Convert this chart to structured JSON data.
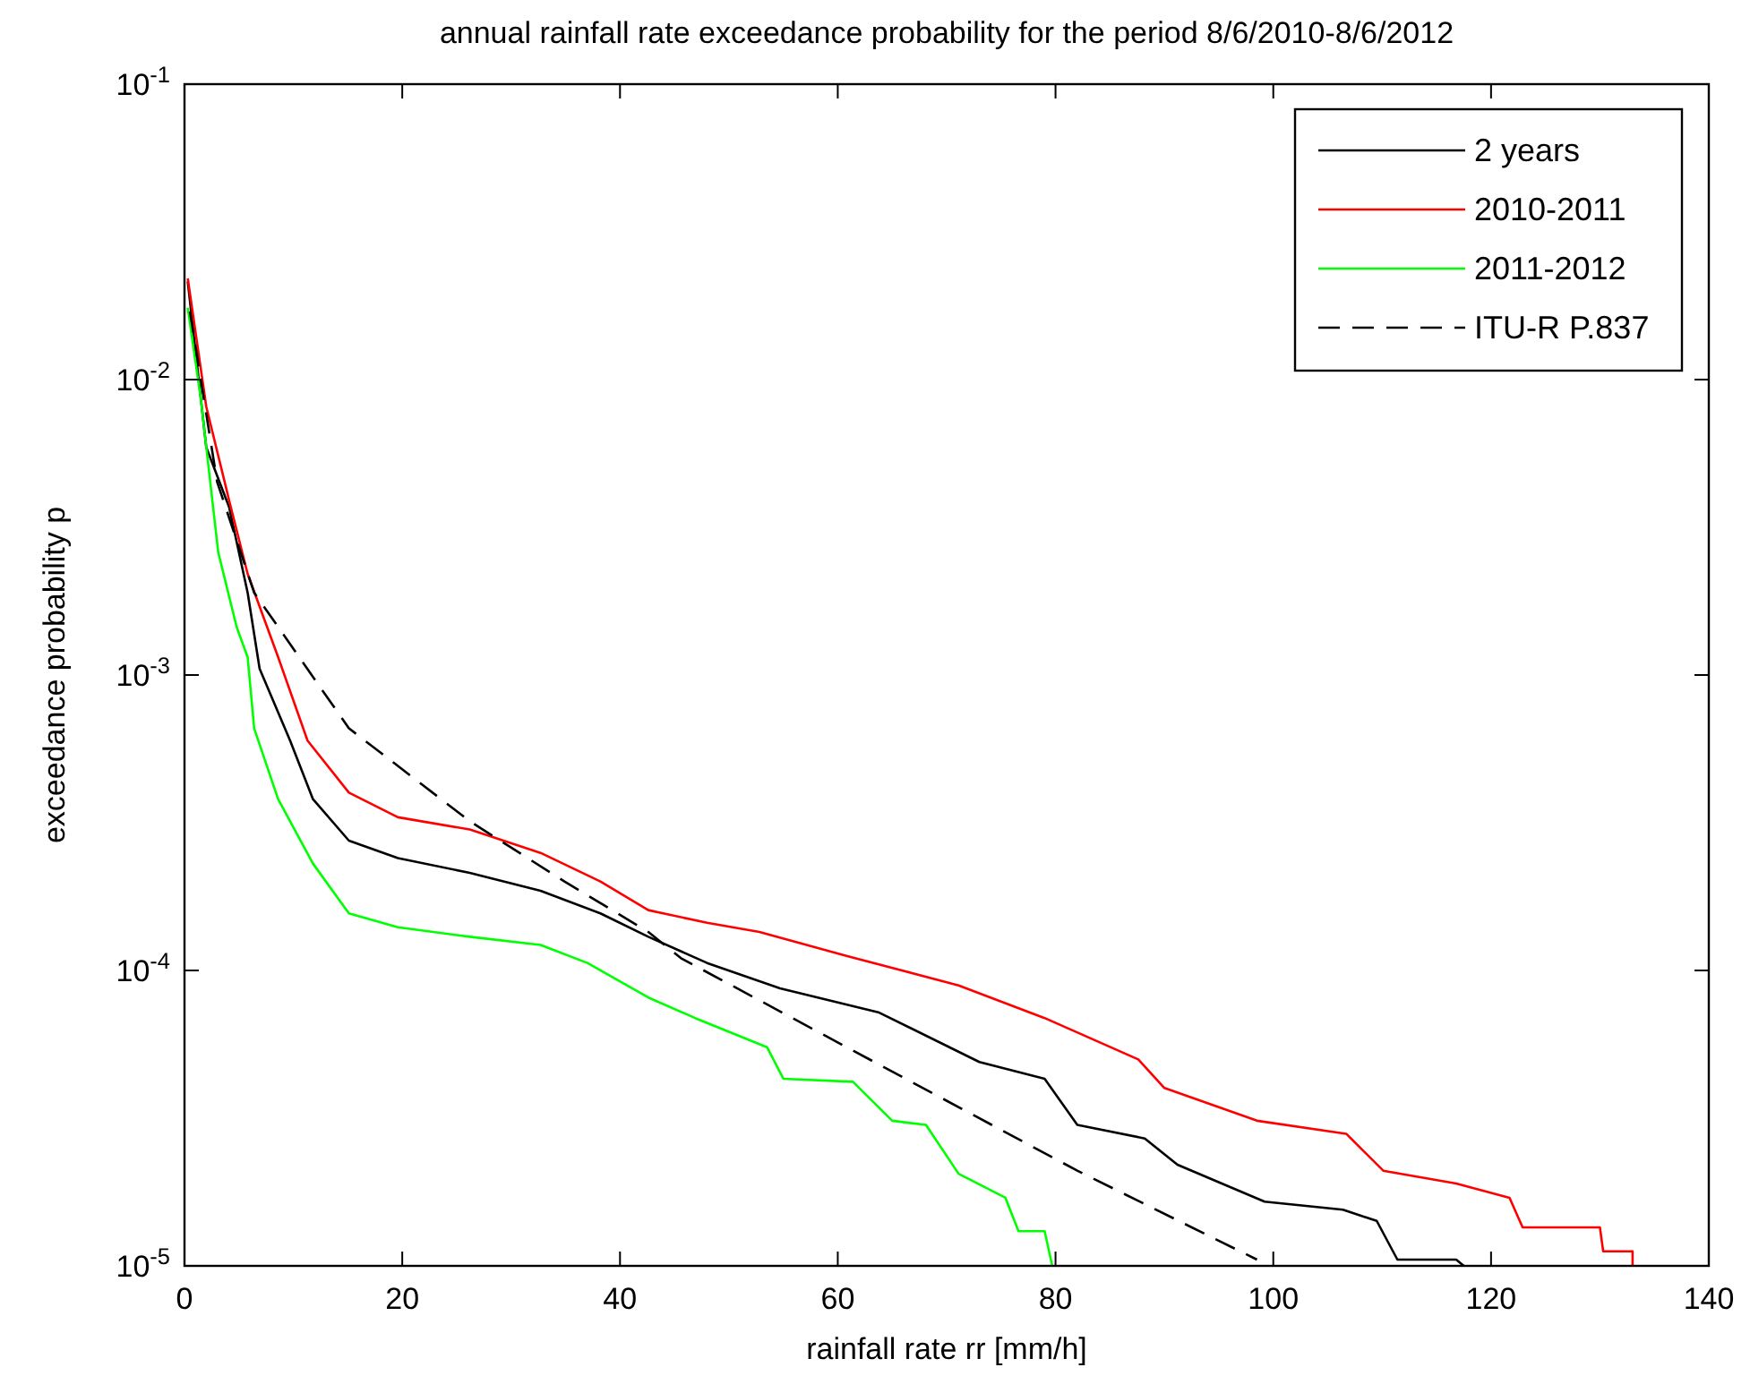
{
  "chart_data": {
    "type": "line",
    "title": "annual rainfall rate exceedance probability for the period 8/6/2010-8/6/2012",
    "xlabel": "rainfall rate rr [mm/h]",
    "ylabel": "exceedance probability p",
    "log": "y",
    "xlim": [
      0,
      140
    ],
    "xticks": [
      0,
      20,
      40,
      60,
      80,
      100,
      120,
      140
    ],
    "ylim": [
      1e-05,
      0.1
    ],
    "yticks": [
      {
        "value": 1e-05,
        "label": "10$^{-5}$"
      },
      {
        "value": 0.0001,
        "label": "10$^{-4}$"
      },
      {
        "value": 0.001,
        "label": "10$^{-3}$"
      },
      {
        "value": 0.01,
        "label": "10$^{-2}$"
      },
      {
        "value": 0.1,
        "label": "10$^{-1}$"
      }
    ],
    "grid": false,
    "legend": "top right",
    "line_style": "solid",
    "marker": "none",
    "series": [
      {
        "name": "2 years",
        "color": "#000000",
        "x": [
          0.3,
          2,
          4.1,
          5.8,
          6.9,
          9.7,
          11.8,
          15.1,
          19.6,
          26.2,
          32.7,
          38.2,
          42.6,
          48,
          54.7,
          63.8,
          73,
          79,
          82,
          88.2,
          91.2,
          99.2,
          106.4,
          109.5,
          111.4,
          116.8,
          117.5
        ],
        "values": [
          0.0215,
          0.0059,
          0.0037,
          0.0019,
          0.00105,
          0.0006,
          0.00038,
          0.000275,
          0.00024,
          0.000214,
          0.000186,
          0.000156,
          0.00013,
          0.000106,
          8.7e-05,
          7.2e-05,
          4.9e-05,
          4.3e-05,
          3e-05,
          2.7e-05,
          2.2e-05,
          1.65e-05,
          1.55e-05,
          1.42e-05,
          1.05e-05,
          1.05e-05,
          1e-05
        ]
      },
      {
        "name": "2010-2011",
        "color": "#ff0000",
        "x": [
          0.3,
          2,
          4.1,
          5.8,
          8.6,
          11.3,
          15.1,
          19.6,
          26.2,
          32.7,
          38.2,
          42.6,
          48,
          52.8,
          60.8,
          71.1,
          79,
          87.6,
          90,
          98.5,
          106.7,
          110.1,
          116.8,
          121.7,
          122.9,
          130,
          130.3,
          133,
          133
        ],
        "values": [
          0.022,
          0.0081,
          0.0039,
          0.0022,
          0.00115,
          0.0006,
          0.0004,
          0.00033,
          0.0003,
          0.00025,
          0.0002,
          0.00016,
          0.000145,
          0.000135,
          0.000112,
          8.9e-05,
          6.9e-05,
          5e-05,
          4e-05,
          3.1e-05,
          2.8e-05,
          2.1e-05,
          1.9e-05,
          1.7e-05,
          1.35e-05,
          1.35e-05,
          1.12e-05,
          1.12e-05,
          1e-05
        ]
      },
      {
        "name": "2011-2012",
        "color": "#00ff00",
        "x": [
          0.3,
          1.5,
          3.1,
          4.8,
          5.8,
          6.4,
          8.6,
          11.8,
          15.1,
          19.6,
          26.2,
          32.7,
          37,
          42.6,
          46.9,
          53.5,
          55,
          61.4,
          65,
          68.1,
          71.1,
          75.4,
          76.6,
          79,
          79.7
        ],
        "values": [
          0.0175,
          0.0086,
          0.0026,
          0.00145,
          0.00115,
          0.00066,
          0.00038,
          0.00023,
          0.000156,
          0.00014,
          0.00013,
          0.000122,
          0.000106,
          8.1e-05,
          6.9e-05,
          5.5e-05,
          4.3e-05,
          4.2e-05,
          3.1e-05,
          3e-05,
          2.05e-05,
          1.7e-05,
          1.31e-05,
          1.31e-05,
          1e-05
        ]
      },
      {
        "name": "ITU-R P.837",
        "color": "#000000",
        "line_style": "dashed",
        "x": [
          0.5,
          3,
          6.4,
          15.1,
          26.2,
          34.9,
          42.6,
          45.6,
          63.8,
          82,
          98.5
        ],
        "values": [
          0.017,
          0.0045,
          0.0019,
          0.00066,
          0.00032,
          0.0002,
          0.000135,
          0.00011,
          4.8e-05,
          2.1e-05,
          1.05e-05
        ]
      }
    ]
  }
}
